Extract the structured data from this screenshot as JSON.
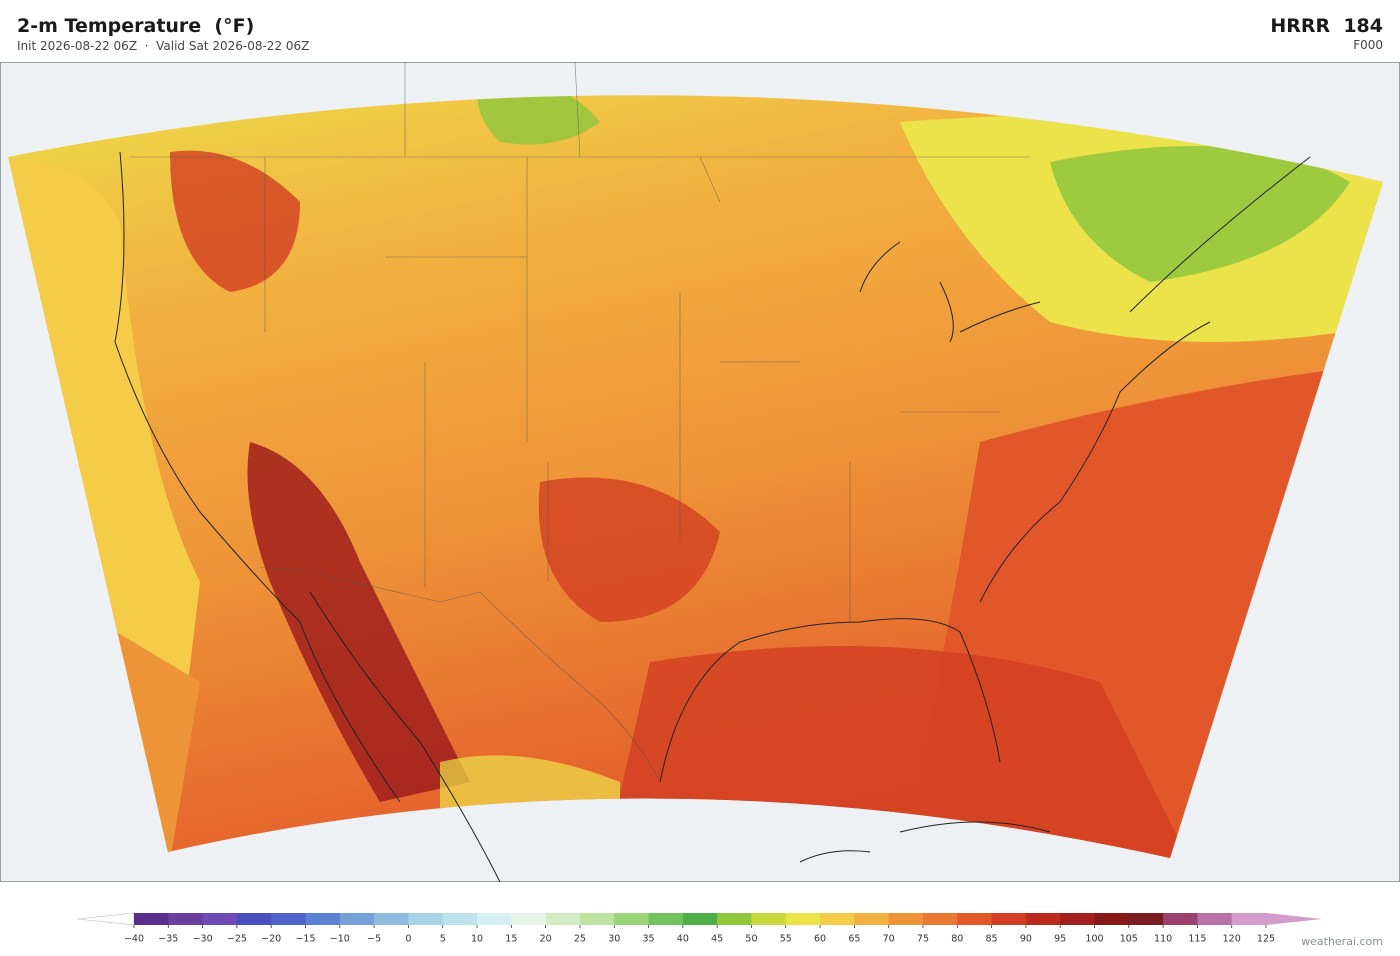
{
  "header": {
    "title": "2-m Temperature  (°F)",
    "subtitle": "Init 2026-08-22 06Z  ·  Valid Sat 2026-08-22 06Z",
    "model": "HRRR  184",
    "forecast_hour": "F000"
  },
  "colorbar": {
    "lim": [
      -40,
      125
    ],
    "ticks": [
      {
        "value": -40,
        "label": "−40"
      },
      {
        "value": -35,
        "label": "−35"
      },
      {
        "value": -30,
        "label": "−30"
      },
      {
        "value": -25,
        "label": "−25"
      },
      {
        "value": -20,
        "label": "−20"
      },
      {
        "value": -15,
        "label": "−15"
      },
      {
        "value": -10,
        "label": "−10"
      },
      {
        "value": -5,
        "label": "−5"
      },
      0,
      5,
      10,
      15,
      20,
      25,
      30,
      35,
      40,
      45,
      50,
      55,
      60,
      65,
      70,
      75,
      80,
      85,
      90,
      95,
      100,
      105,
      110,
      115,
      120,
      125
    ],
    "colors": [
      "#5a2d8c",
      "#6a3fa0",
      "#6e4bb5",
      "#4a4fc0",
      "#4e62c8",
      "#5b82d0",
      "#74a0d8",
      "#8fbbe0",
      "#a8d2e8",
      "#bde2ee",
      "#d5eef2",
      "#e6f5e6",
      "#d4ecc4",
      "#bde3a0",
      "#9ad47a",
      "#72c25e",
      "#4fb04a",
      "#8fc63c",
      "#c8d83c",
      "#ece24a",
      "#f4cc48",
      "#f2b040",
      "#ee9438",
      "#e87832",
      "#e2572a",
      "#d23e22",
      "#bc2a1e",
      "#a01e1c",
      "#861818",
      "#7a1c20",
      "#9c4070",
      "#b870a8",
      "#d49ccc"
    ],
    "under_color": "#ffffff",
    "over_color": "#d49ccc"
  },
  "footer": {
    "credit": "weatherai.com"
  }
}
